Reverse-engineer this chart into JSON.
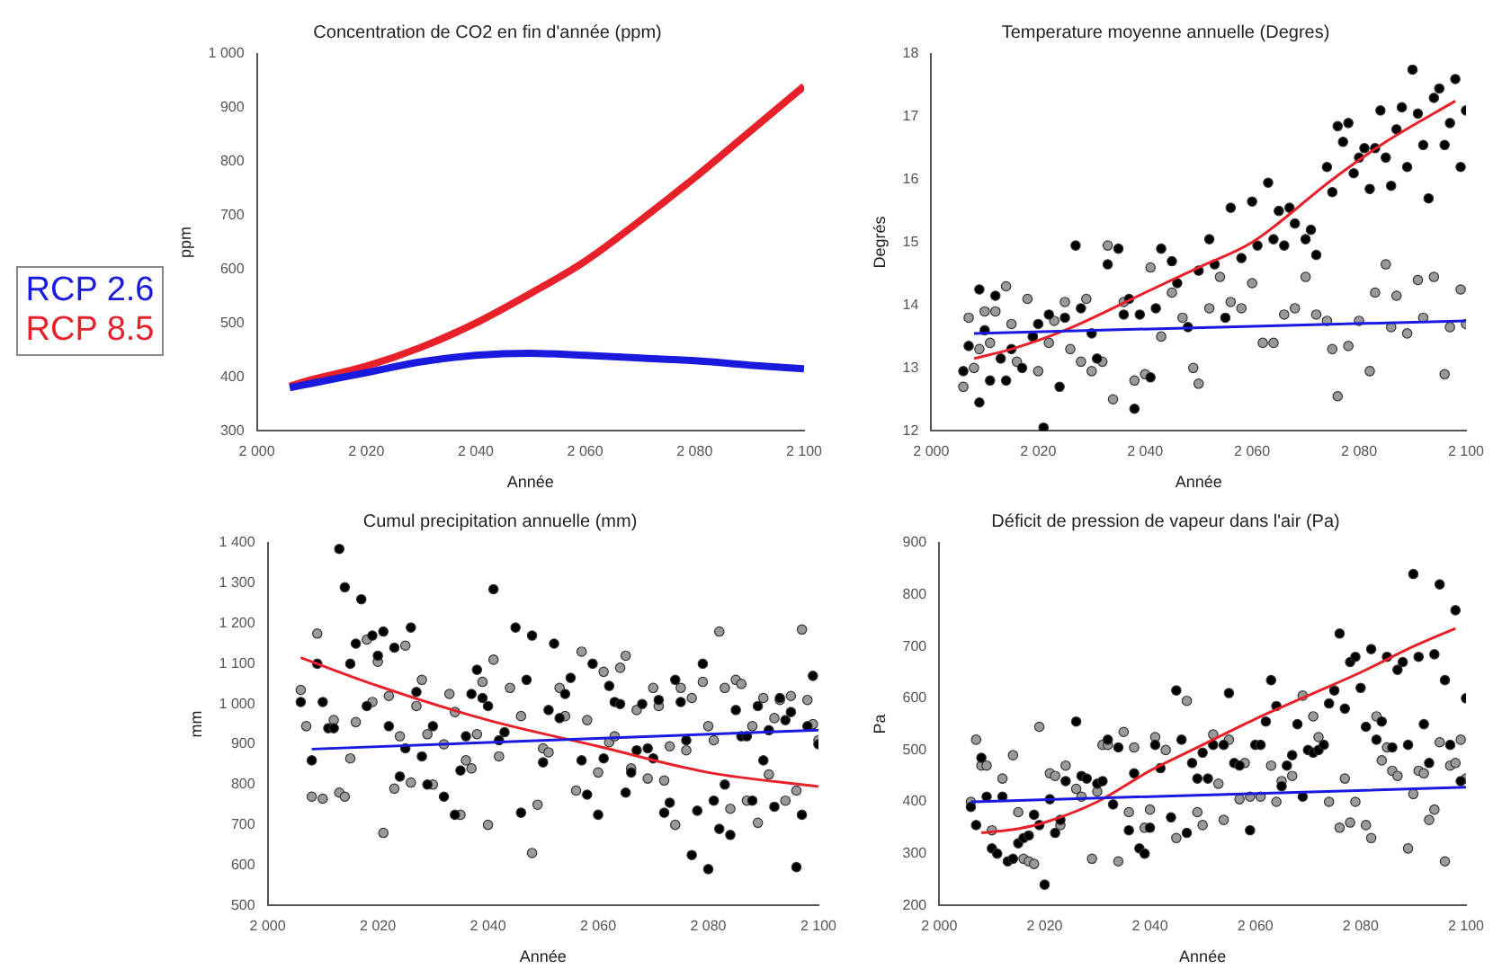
{
  "chart_data": [
    {
      "type": "line",
      "title": "Concentration de CO2 en fin d'année (ppm)",
      "xlabel": "Année",
      "ylabel": "ppm",
      "legend": "left",
      "grid": false,
      "xlim": [
        2000,
        2100
      ],
      "xticks": [
        {
          "value": 2000,
          "label": "2 000"
        },
        {
          "value": 2020,
          "label": "2 020"
        },
        {
          "value": 2040,
          "label": "2 040"
        },
        {
          "value": 2060,
          "label": "2 060"
        },
        {
          "value": 2080,
          "label": "2 080"
        },
        {
          "value": 2100,
          "label": "2 100"
        }
      ],
      "ylim": [
        300,
        1000
      ],
      "yticks": [
        300,
        400,
        500,
        600,
        700,
        800,
        900,
        {
          "value": 1000,
          "label": "1 000"
        }
      ],
      "series": [
        {
          "name": "RCP 2.6",
          "color": "#1a1adf",
          "x": [
            2006,
            2010,
            2020,
            2030,
            2040,
            2050,
            2060,
            2070,
            2080,
            2090,
            2100
          ],
          "values": [
            380,
            388,
            408,
            428,
            440,
            444,
            440,
            435,
            430,
            422,
            415
          ]
        },
        {
          "name": "RCP 8.5",
          "color": "#e8202a",
          "x": [
            2006,
            2010,
            2020,
            2030,
            2040,
            2050,
            2060,
            2070,
            2080,
            2090,
            2100
          ],
          "values": [
            383,
            395,
            420,
            455,
            500,
            555,
            615,
            690,
            770,
            855,
            940
          ]
        }
      ]
    },
    {
      "type": "scatter",
      "title": "Temperature moyenne annuelle (Degres)",
      "xlabel": "Année",
      "ylabel": "Degrés",
      "grid": false,
      "marker": "circle",
      "xlim": [
        2000,
        2100
      ],
      "xticks": [
        {
          "value": 2000,
          "label": "2 000"
        },
        {
          "value": 2020,
          "label": "2 020"
        },
        {
          "value": 2040,
          "label": "2 040"
        },
        {
          "value": 2060,
          "label": "2 060"
        },
        {
          "value": 2080,
          "label": "2 080"
        },
        {
          "value": 2100,
          "label": "2 100"
        }
      ],
      "ylim": [
        12,
        18
      ],
      "yticks": [
        12,
        13,
        14,
        15,
        16,
        17,
        18
      ],
      "series": [
        {
          "color": "#000000",
          "x": [
            2006,
            2007,
            2009,
            2009,
            2010,
            2011,
            2012,
            2013,
            2014,
            2015,
            2017,
            2019,
            2020,
            2021,
            2022,
            2024,
            2025,
            2027,
            2028,
            2030,
            2031,
            2033,
            2035,
            2036,
            2037,
            2038,
            2039,
            2041,
            2042,
            2043,
            2045,
            2046,
            2048,
            2050,
            2052,
            2053,
            2055,
            2056,
            2058,
            2060,
            2061,
            2063,
            2064,
            2065,
            2066,
            2067,
            2068,
            2070,
            2071,
            2072,
            2074,
            2075,
            2076,
            2077,
            2078,
            2079,
            2080,
            2081,
            2082,
            2083,
            2084,
            2085,
            2086,
            2087,
            2088,
            2089,
            2090,
            2091,
            2092,
            2093,
            2094,
            2095,
            2096,
            2097,
            2098,
            2099,
            2100
          ],
          "values": [
            12.95,
            13.35,
            14.25,
            12.45,
            13.6,
            12.8,
            14.15,
            13.15,
            12.8,
            13.3,
            13.0,
            13.5,
            13.7,
            12.05,
            13.85,
            12.7,
            13.8,
            14.95,
            13.95,
            13.55,
            13.15,
            14.65,
            14.9,
            13.85,
            14.1,
            12.35,
            13.85,
            12.85,
            13.95,
            14.9,
            14.7,
            14.35,
            13.65,
            14.55,
            15.05,
            14.65,
            13.8,
            15.55,
            14.75,
            15.65,
            14.95,
            15.95,
            15.05,
            15.5,
            14.95,
            15.55,
            15.3,
            15.05,
            15.2,
            14.8,
            16.2,
            15.8,
            16.85,
            16.6,
            16.9,
            16.1,
            16.35,
            16.5,
            15.85,
            16.5,
            17.1,
            16.35,
            15.9,
            16.8,
            17.15,
            16.2,
            17.75,
            17.05,
            16.55,
            15.7,
            17.3,
            17.45,
            16.55,
            16.9,
            17.6,
            16.2,
            17.1
          ]
        },
        {
          "color": "#9a9a9a",
          "x": [
            2006,
            2007,
            2008,
            2009,
            2010,
            2011,
            2012,
            2014,
            2015,
            2016,
            2018,
            2019,
            2020,
            2022,
            2023,
            2025,
            2026,
            2028,
            2029,
            2030,
            2032,
            2033,
            2034,
            2036,
            2038,
            2040,
            2041,
            2043,
            2045,
            2047,
            2049,
            2050,
            2052,
            2054,
            2056,
            2058,
            2060,
            2062,
            2064,
            2066,
            2068,
            2070,
            2072,
            2074,
            2075,
            2076,
            2078,
            2080,
            2082,
            2083,
            2085,
            2086,
            2087,
            2089,
            2091,
            2092,
            2094,
            2096,
            2097,
            2099,
            2100
          ],
          "values": [
            12.7,
            13.8,
            13.0,
            13.3,
            13.9,
            13.4,
            13.9,
            14.3,
            13.7,
            13.1,
            14.1,
            13.5,
            12.95,
            13.4,
            13.75,
            14.05,
            13.3,
            13.1,
            14.1,
            12.95,
            13.1,
            14.95,
            12.5,
            14.05,
            12.8,
            12.9,
            14.6,
            13.5,
            14.2,
            13.8,
            13.0,
            12.75,
            13.95,
            14.45,
            14.05,
            13.95,
            14.35,
            13.4,
            13.4,
            13.85,
            13.95,
            14.45,
            13.85,
            13.75,
            13.3,
            12.55,
            13.35,
            13.75,
            12.95,
            14.2,
            14.65,
            13.65,
            14.15,
            13.55,
            14.4,
            13.8,
            14.45,
            12.9,
            13.65,
            14.25,
            13.7
          ]
        },
        {
          "type": "line",
          "marker": "none",
          "color": "#1a1adf",
          "x": [
            2008,
            2100
          ],
          "values": [
            13.55,
            13.75
          ]
        },
        {
          "type": "line",
          "marker": "none",
          "color": "#e8202a",
          "x": [
            2008,
            2015,
            2025,
            2040,
            2050,
            2060,
            2075,
            2085,
            2098
          ],
          "values": [
            13.15,
            13.3,
            13.6,
            14.2,
            14.6,
            15.0,
            16.0,
            16.6,
            17.25
          ]
        }
      ]
    },
    {
      "type": "scatter",
      "title": "Cumul precipitation annuelle (mm)",
      "xlabel": "Année",
      "ylabel": "mm",
      "grid": false,
      "marker": "circle",
      "xlim": [
        2000,
        2100
      ],
      "xticks": [
        {
          "value": 2000,
          "label": "2 000"
        },
        {
          "value": 2020,
          "label": "2 020"
        },
        {
          "value": 2040,
          "label": "2 040"
        },
        {
          "value": 2060,
          "label": "2 060"
        },
        {
          "value": 2080,
          "label": "2 080"
        },
        {
          "value": 2100,
          "label": "2 100"
        }
      ],
      "ylim": [
        500,
        1400
      ],
      "yticks": [
        500,
        600,
        700,
        800,
        900,
        {
          "value": 1000,
          "label": "1 000"
        },
        {
          "value": 1100,
          "label": "1 100"
        },
        {
          "value": 1200,
          "label": "1 200"
        },
        {
          "value": 1300,
          "label": "1 300"
        },
        {
          "value": 1400,
          "label": "1 400"
        }
      ],
      "series": [
        {
          "color": "#000000",
          "x": [
            2006,
            2008,
            2009,
            2010,
            2011,
            2012,
            2013,
            2014,
            2015,
            2016,
            2017,
            2018,
            2019,
            2020,
            2021,
            2022,
            2023,
            2024,
            2025,
            2026,
            2027,
            2028,
            2029,
            2030,
            2032,
            2034,
            2035,
            2036,
            2037,
            2038,
            2039,
            2040,
            2041,
            2042,
            2043,
            2045,
            2046,
            2047,
            2048,
            2050,
            2051,
            2052,
            2053,
            2054,
            2055,
            2057,
            2058,
            2059,
            2060,
            2061,
            2062,
            2063,
            2064,
            2065,
            2066,
            2067,
            2068,
            2069,
            2070,
            2071,
            2072,
            2073,
            2074,
            2075,
            2076,
            2077,
            2078,
            2079,
            2080,
            2081,
            2082,
            2083,
            2084,
            2085,
            2086,
            2087,
            2088,
            2089,
            2090,
            2091,
            2092,
            2093,
            2094,
            2095,
            2096,
            2097,
            2098,
            2099,
            2100
          ],
          "values": [
            1005,
            860,
            1100,
            1005,
            940,
            940,
            1385,
            1290,
            1100,
            1150,
            1260,
            995,
            1170,
            1120,
            1180,
            945,
            1140,
            820,
            890,
            1190,
            1030,
            870,
            800,
            945,
            770,
            725,
            835,
            920,
            1025,
            1085,
            1015,
            995,
            1285,
            910,
            930,
            1190,
            730,
            1060,
            1170,
            855,
            985,
            1150,
            965,
            1025,
            1065,
            860,
            775,
            1100,
            725,
            865,
            1045,
            1005,
            1000,
            780,
            830,
            885,
            1000,
            890,
            865,
            1010,
            730,
            755,
            1060,
            1005,
            910,
            625,
            735,
            1100,
            590,
            760,
            690,
            800,
            675,
            985,
            920,
            920,
            760,
            995,
            860,
            935,
            745,
            1015,
            960,
            980,
            595,
            725,
            945,
            1070,
            900
          ]
        },
        {
          "color": "#9a9a9a",
          "x": [
            2006,
            2007,
            2008,
            2009,
            2010,
            2012,
            2013,
            2014,
            2015,
            2016,
            2018,
            2019,
            2020,
            2021,
            2022,
            2023,
            2024,
            2025,
            2026,
            2027,
            2028,
            2029,
            2030,
            2032,
            2033,
            2034,
            2035,
            2036,
            2037,
            2038,
            2039,
            2040,
            2041,
            2042,
            2044,
            2046,
            2048,
            2049,
            2050,
            2051,
            2053,
            2054,
            2056,
            2057,
            2058,
            2060,
            2061,
            2062,
            2063,
            2064,
            2065,
            2066,
            2067,
            2069,
            2070,
            2071,
            2072,
            2073,
            2074,
            2075,
            2076,
            2077,
            2079,
            2080,
            2081,
            2082,
            2083,
            2084,
            2085,
            2086,
            2087,
            2088,
            2089,
            2090,
            2091,
            2092,
            2093,
            2094,
            2095,
            2096,
            2097,
            2098,
            2099,
            2100
          ],
          "values": [
            1035,
            945,
            770,
            1175,
            765,
            960,
            780,
            770,
            865,
            955,
            1160,
            1005,
            1105,
            680,
            1020,
            790,
            920,
            1145,
            805,
            995,
            1060,
            925,
            800,
            900,
            1025,
            980,
            725,
            860,
            840,
            925,
            1055,
            700,
            1110,
            870,
            1040,
            970,
            630,
            750,
            890,
            880,
            1040,
            970,
            785,
            1130,
            960,
            830,
            1080,
            905,
            920,
            1090,
            1120,
            840,
            985,
            815,
            1040,
            995,
            810,
            895,
            700,
            1040,
            885,
            1015,
            1055,
            945,
            910,
            1180,
            1040,
            740,
            1060,
            1050,
            760,
            945,
            705,
            1015,
            825,
            965,
            1010,
            760,
            1020,
            785,
            1185,
            1010,
            950,
            910
          ]
        },
        {
          "type": "line",
          "marker": "none",
          "color": "#1a1adf",
          "x": [
            2008,
            2100
          ],
          "values": [
            888,
            935
          ]
        },
        {
          "type": "line",
          "marker": "none",
          "color": "#e8202a",
          "x": [
            2006,
            2020,
            2040,
            2060,
            2080,
            2100
          ],
          "values": [
            1115,
            1045,
            960,
            895,
            830,
            795
          ]
        }
      ]
    },
    {
      "type": "scatter",
      "title": "Déficit de pression de vapeur dans l'air (Pa)",
      "xlabel": "Année",
      "ylabel": "Pa",
      "grid": false,
      "marker": "circle",
      "xlim": [
        2000,
        2100
      ],
      "xticks": [
        {
          "value": 2000,
          "label": "2 000"
        },
        {
          "value": 2020,
          "label": "2 020"
        },
        {
          "value": 2040,
          "label": "2 040"
        },
        {
          "value": 2060,
          "label": "2 060"
        },
        {
          "value": 2080,
          "label": "2 080"
        },
        {
          "value": 2100,
          "label": "2 100"
        }
      ],
      "ylim": [
        200,
        900
      ],
      "yticks": [
        200,
        300,
        400,
        500,
        600,
        700,
        800,
        900
      ],
      "series": [
        {
          "color": "#000000",
          "x": [
            2006,
            2007,
            2008,
            2009,
            2010,
            2011,
            2012,
            2013,
            2014,
            2015,
            2016,
            2017,
            2018,
            2019,
            2020,
            2021,
            2022,
            2023,
            2024,
            2026,
            2027,
            2028,
            2030,
            2031,
            2032,
            2033,
            2034,
            2036,
            2037,
            2038,
            2039,
            2040,
            2041,
            2042,
            2044,
            2045,
            2046,
            2047,
            2048,
            2049,
            2050,
            2051,
            2052,
            2054,
            2055,
            2056,
            2057,
            2059,
            2060,
            2061,
            2062,
            2063,
            2064,
            2065,
            2066,
            2067,
            2068,
            2069,
            2070,
            2071,
            2072,
            2073,
            2074,
            2075,
            2076,
            2077,
            2078,
            2079,
            2080,
            2081,
            2082,
            2083,
            2084,
            2085,
            2086,
            2087,
            2088,
            2089,
            2090,
            2091,
            2092,
            2093,
            2094,
            2095,
            2096,
            2097,
            2098,
            2099,
            2100
          ],
          "values": [
            390,
            355,
            485,
            410,
            310,
            300,
            410,
            285,
            290,
            320,
            330,
            335,
            375,
            355,
            240,
            405,
            340,
            365,
            440,
            555,
            450,
            445,
            435,
            440,
            520,
            395,
            505,
            345,
            455,
            310,
            300,
            350,
            510,
            465,
            370,
            615,
            520,
            340,
            475,
            445,
            495,
            445,
            510,
            510,
            610,
            475,
            470,
            345,
            510,
            510,
            555,
            635,
            585,
            430,
            470,
            490,
            550,
            410,
            500,
            495,
            500,
            510,
            590,
            615,
            725,
            580,
            670,
            680,
            620,
            545,
            695,
            520,
            555,
            680,
            505,
            655,
            670,
            510,
            840,
            680,
            550,
            475,
            685,
            820,
            635,
            510,
            770,
            440,
            600
          ]
        },
        {
          "color": "#9a9a9a",
          "x": [
            2006,
            2007,
            2008,
            2009,
            2010,
            2012,
            2014,
            2015,
            2016,
            2017,
            2018,
            2019,
            2021,
            2022,
            2023,
            2024,
            2026,
            2027,
            2029,
            2030,
            2031,
            2032,
            2034,
            2035,
            2036,
            2037,
            2039,
            2040,
            2041,
            2043,
            2045,
            2047,
            2049,
            2050,
            2052,
            2053,
            2054,
            2055,
            2057,
            2058,
            2059,
            2061,
            2063,
            2064,
            2065,
            2067,
            2069,
            2071,
            2072,
            2074,
            2076,
            2077,
            2078,
            2079,
            2081,
            2082,
            2083,
            2084,
            2085,
            2086,
            2087,
            2089,
            2090,
            2091,
            2092,
            2093,
            2094,
            2095,
            2096,
            2097,
            2098,
            2099,
            2100
          ],
          "values": [
            400,
            520,
            470,
            470,
            345,
            445,
            490,
            380,
            290,
            285,
            280,
            545,
            455,
            450,
            355,
            470,
            425,
            410,
            290,
            420,
            510,
            510,
            285,
            535,
            380,
            505,
            350,
            385,
            525,
            500,
            330,
            595,
            380,
            355,
            530,
            435,
            365,
            520,
            405,
            475,
            410,
            410,
            470,
            400,
            440,
            450,
            605,
            565,
            525,
            400,
            350,
            445,
            360,
            400,
            355,
            330,
            565,
            480,
            505,
            460,
            450,
            310,
            415,
            460,
            455,
            365,
            385,
            515,
            285,
            470,
            475,
            520,
            445
          ]
        },
        {
          "type": "line",
          "marker": "none",
          "color": "#1a1adf",
          "x": [
            2006,
            2100
          ],
          "values": [
            400,
            428
          ]
        },
        {
          "type": "line",
          "marker": "none",
          "color": "#e8202a",
          "x": [
            2008,
            2015,
            2020,
            2030,
            2040,
            2050,
            2060,
            2070,
            2080,
            2090,
            2098
          ],
          "values": [
            340,
            348,
            360,
            400,
            460,
            510,
            560,
            605,
            650,
            700,
            735
          ]
        }
      ]
    }
  ]
}
